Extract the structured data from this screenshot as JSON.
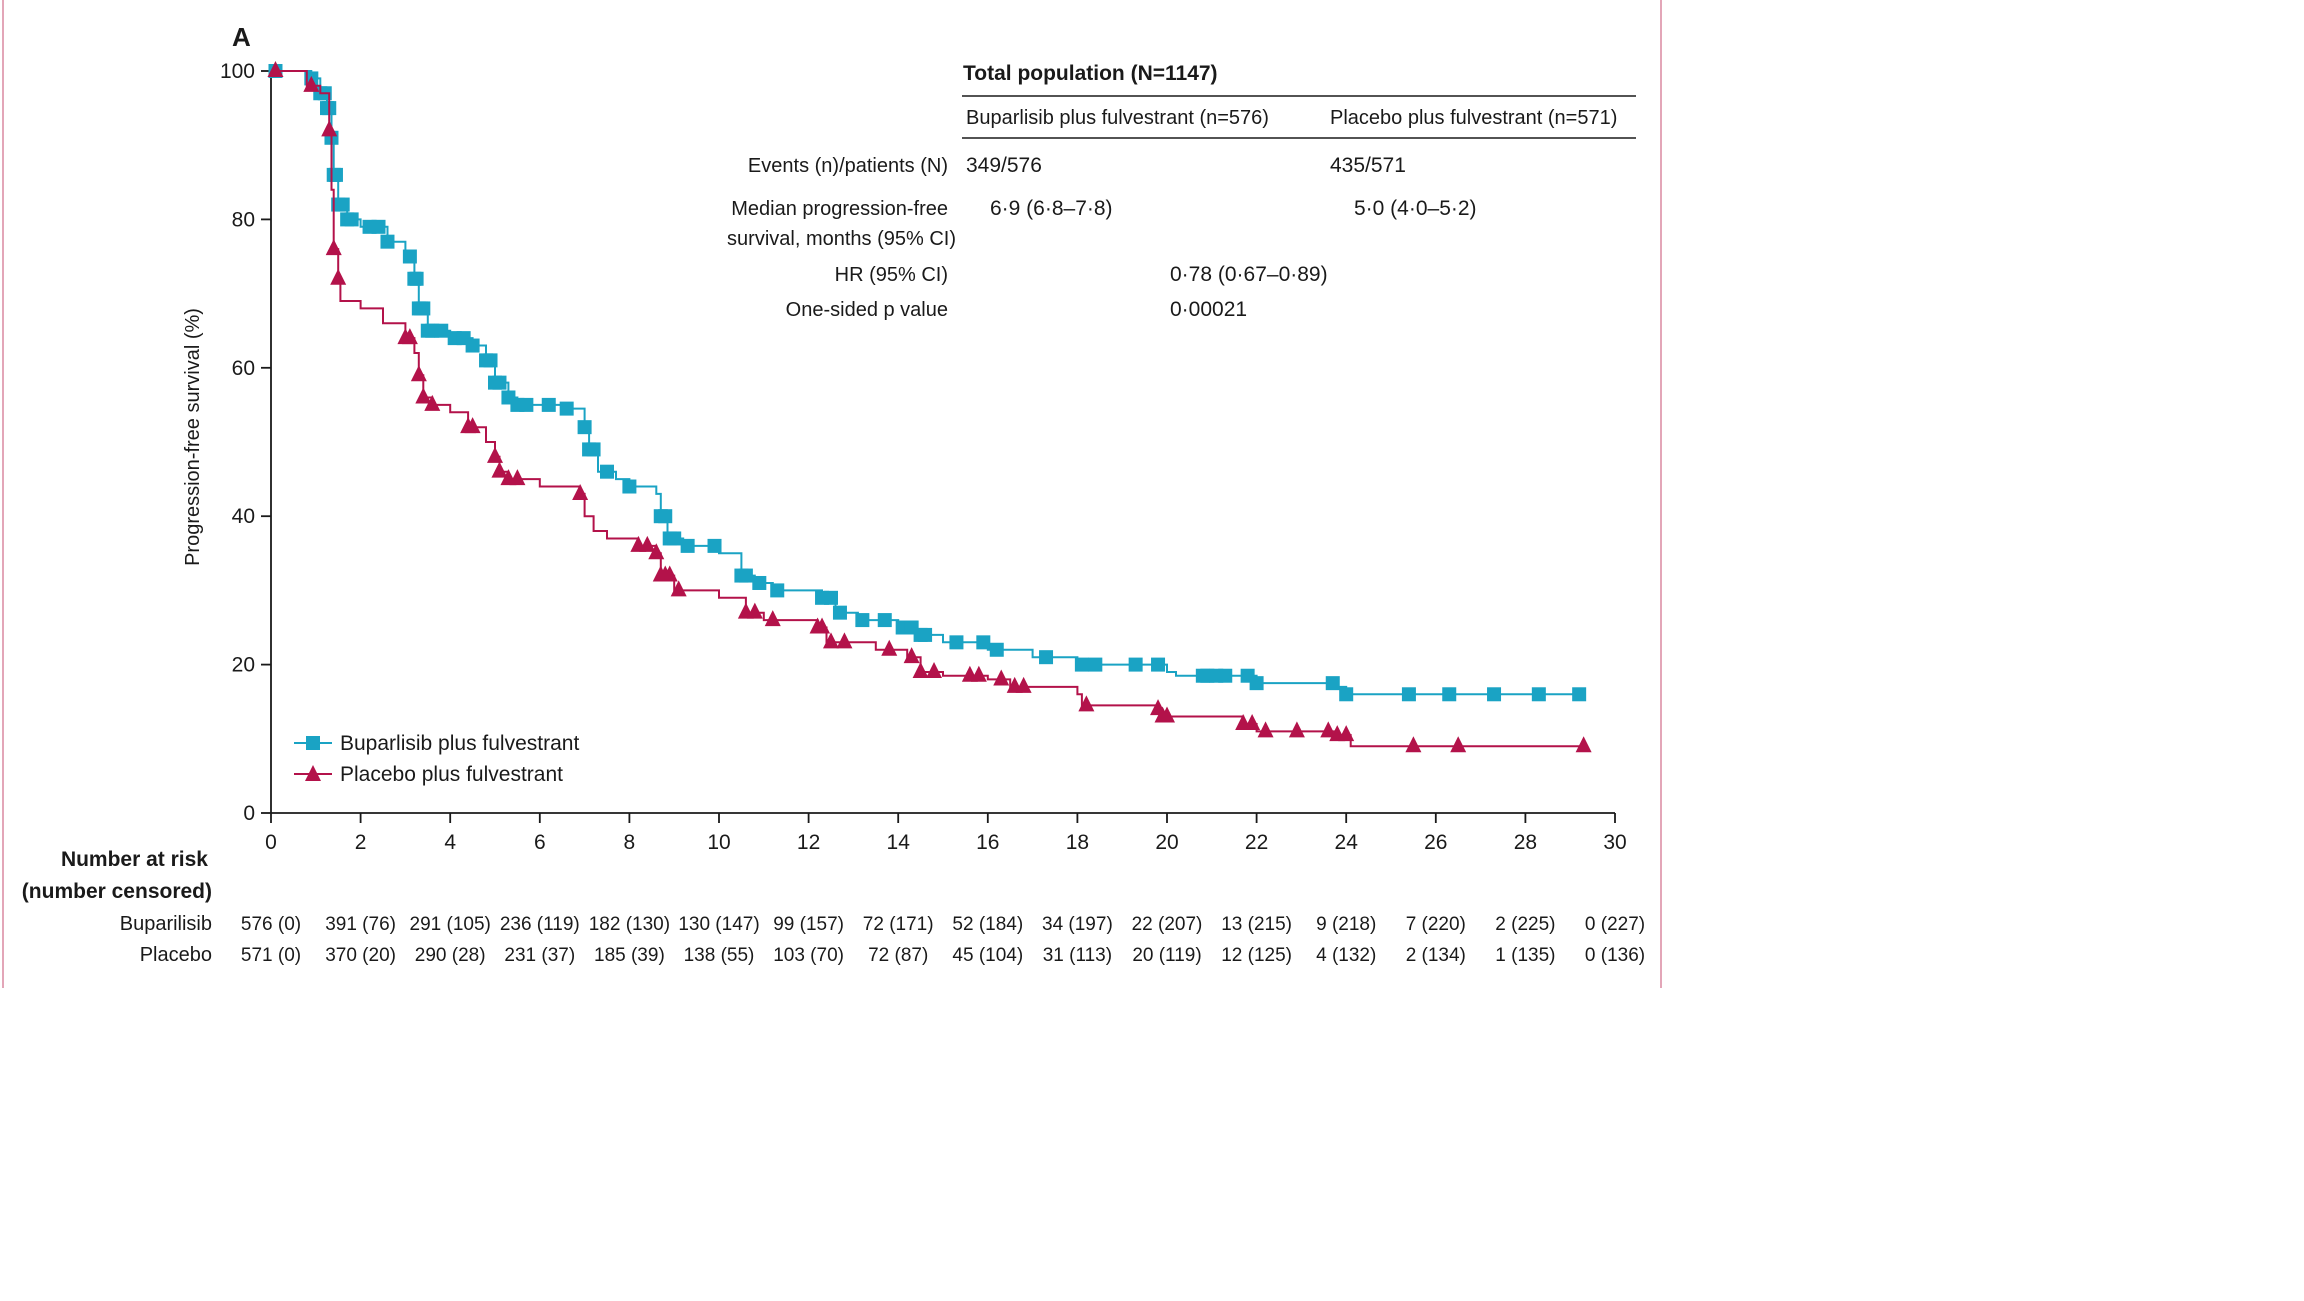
{
  "panel_label": "A",
  "colors": {
    "buparlisib": "#1aa3c4",
    "placebo": "#b3124a",
    "axis": "#1a1a1a",
    "frame": "#e3a6b8"
  },
  "table": {
    "title": "Total population (N=1147)",
    "col1": "Buparlisib plus fulvestrant (n=576)",
    "col2": "Placebo plus fulvestrant (n=571)",
    "rows": [
      {
        "label": "Events (n)/patients (N)",
        "v1": "349/576",
        "v2": "435/571"
      },
      {
        "label1": "Median progression-free",
        "label2": "survival, months (95% CI)",
        "v1": "6·9 (6·8–7·8)",
        "v2": "5·0 (4·0–5·2)"
      },
      {
        "label": "HR (95% CI)",
        "v": "0·78 (0·67–0·89)"
      },
      {
        "label": "One-sided p value",
        "v": "0·00021"
      }
    ]
  },
  "legend": {
    "buparlisib": "Buparlisib plus fulvestrant",
    "placebo": "Placebo plus fulvestrant"
  },
  "risk": {
    "heading1": "Number at risk",
    "heading2": "(number censored)",
    "rows": [
      {
        "label": "Buparilisib",
        "values": [
          "576 (0)",
          "391 (76)",
          "291 (105)",
          "236 (119)",
          "182 (130)",
          "130 (147)",
          "99 (157)",
          "72 (171)",
          "52 (184)",
          "34 (197)",
          "22 (207)",
          "13 (215)",
          "9 (218)",
          "7 (220)",
          "2 (225)",
          "0 (227)"
        ]
      },
      {
        "label": "Placebo",
        "values": [
          "571 (0)",
          "370 (20)",
          "290 (28)",
          "231 (37)",
          "185 (39)",
          "138 (55)",
          "103 (70)",
          "72 (87)",
          "45 (104)",
          "31 (113)",
          "20 (119)",
          "12 (125)",
          "4 (132)",
          "2 (134)",
          "1 (135)",
          "0 (136)"
        ]
      }
    ]
  },
  "chart_data": {
    "type": "line",
    "title": "",
    "xlabel": "",
    "ylabel": "Progression-free survival (%)",
    "xlim": [
      0,
      30
    ],
    "ylim": [
      0,
      100
    ],
    "x_ticks": [
      0,
      2,
      4,
      6,
      8,
      10,
      12,
      14,
      16,
      18,
      20,
      22,
      24,
      26,
      28,
      30
    ],
    "y_ticks": [
      0,
      20,
      40,
      60,
      80,
      100
    ],
    "grid": false,
    "legend_position": "bottom-left",
    "series": [
      {
        "name": "Buparlisib plus fulvestrant",
        "marker": "square",
        "steps": [
          [
            0,
            100
          ],
          [
            0.9,
            99
          ],
          [
            1.1,
            97
          ],
          [
            1.25,
            95
          ],
          [
            1.35,
            91
          ],
          [
            1.4,
            86
          ],
          [
            1.5,
            82
          ],
          [
            1.7,
            80
          ],
          [
            2.0,
            79
          ],
          [
            2.6,
            77
          ],
          [
            3.0,
            75
          ],
          [
            3.2,
            72
          ],
          [
            3.3,
            68
          ],
          [
            3.5,
            65
          ],
          [
            4.0,
            64
          ],
          [
            4.5,
            63
          ],
          [
            4.8,
            61
          ],
          [
            5.0,
            58
          ],
          [
            5.3,
            56
          ],
          [
            5.5,
            55
          ],
          [
            6.6,
            54.5
          ],
          [
            7.0,
            52
          ],
          [
            7.1,
            49
          ],
          [
            7.3,
            46
          ],
          [
            7.7,
            45
          ],
          [
            8.0,
            44
          ],
          [
            8.6,
            43
          ],
          [
            8.7,
            40
          ],
          [
            8.85,
            37
          ],
          [
            9.2,
            36
          ],
          [
            10.0,
            35
          ],
          [
            10.5,
            32
          ],
          [
            10.8,
            31
          ],
          [
            11.2,
            30
          ],
          [
            12.3,
            29
          ],
          [
            12.6,
            27
          ],
          [
            13.1,
            26
          ],
          [
            14.0,
            25
          ],
          [
            14.4,
            24
          ],
          [
            15.0,
            23
          ],
          [
            16.0,
            22
          ],
          [
            17.0,
            21
          ],
          [
            18.0,
            20
          ],
          [
            18.3,
            20
          ],
          [
            20.0,
            19
          ],
          [
            20.2,
            18.5
          ],
          [
            21.8,
            18.5
          ],
          [
            22.0,
            17.5
          ],
          [
            23.8,
            17
          ],
          [
            24.0,
            16
          ],
          [
            29.3,
            16
          ]
        ],
        "censor_x": [
          0.1,
          0.9,
          1.1,
          1.2,
          1.25,
          1.3,
          1.35,
          1.4,
          1.45,
          1.5,
          1.6,
          1.7,
          1.8,
          2.2,
          2.4,
          2.6,
          3.1,
          3.2,
          3.25,
          3.3,
          3.35,
          3.4,
          3.5,
          3.6,
          3.8,
          4.1,
          4.3,
          4.5,
          4.8,
          4.9,
          5.0,
          5.1,
          5.3,
          5.5,
          5.7,
          6.2,
          6.6,
          7.0,
          7.1,
          7.2,
          7.5,
          8.0,
          8.7,
          8.8,
          8.9,
          9.0,
          9.3,
          9.9,
          10.5,
          10.6,
          10.9,
          11.3,
          12.3,
          12.5,
          12.7,
          13.2,
          13.7,
          14.1,
          14.3,
          14.5,
          14.6,
          15.3,
          15.9,
          16.2,
          17.3,
          18.1,
          18.4,
          19.3,
          19.8,
          20.8,
          20.9,
          21.1,
          21.3,
          21.8,
          22.0,
          23.7,
          24.0,
          25.4,
          26.3,
          27.3,
          28.3,
          29.2
        ]
      },
      {
        "name": "Placebo plus fulvestrant",
        "marker": "triangle",
        "steps": [
          [
            0,
            100
          ],
          [
            0.8,
            98
          ],
          [
            1.1,
            97
          ],
          [
            1.3,
            92
          ],
          [
            1.35,
            84
          ],
          [
            1.4,
            76
          ],
          [
            1.5,
            72
          ],
          [
            1.55,
            69
          ],
          [
            2.0,
            68
          ],
          [
            2.5,
            66
          ],
          [
            3.0,
            64
          ],
          [
            3.2,
            62
          ],
          [
            3.3,
            59
          ],
          [
            3.4,
            56
          ],
          [
            3.6,
            55
          ],
          [
            4.0,
            54
          ],
          [
            4.4,
            52
          ],
          [
            4.8,
            50
          ],
          [
            5.0,
            48
          ],
          [
            5.1,
            46
          ],
          [
            5.3,
            45
          ],
          [
            6.0,
            44
          ],
          [
            6.9,
            43
          ],
          [
            7.0,
            40
          ],
          [
            7.2,
            38
          ],
          [
            7.5,
            37
          ],
          [
            8.2,
            36
          ],
          [
            8.6,
            35
          ],
          [
            8.7,
            32
          ],
          [
            9.0,
            30
          ],
          [
            10.0,
            29
          ],
          [
            10.6,
            27
          ],
          [
            11.0,
            26
          ],
          [
            12.2,
            25
          ],
          [
            12.4,
            23
          ],
          [
            13.5,
            22
          ],
          [
            14.2,
            21
          ],
          [
            14.5,
            19
          ],
          [
            15.0,
            18.5
          ],
          [
            16.0,
            18
          ],
          [
            16.5,
            17
          ],
          [
            18.0,
            16
          ],
          [
            18.1,
            14.5
          ],
          [
            19.8,
            14
          ],
          [
            19.9,
            13
          ],
          [
            21.7,
            12
          ],
          [
            22.0,
            11
          ],
          [
            23.8,
            10.5
          ],
          [
            24.1,
            9
          ],
          [
            29.3,
            9
          ]
        ],
        "censor_x": [
          0.1,
          0.9,
          1.3,
          1.4,
          1.5,
          3.0,
          3.1,
          3.3,
          3.4,
          3.6,
          4.4,
          4.5,
          5.0,
          5.1,
          5.3,
          5.5,
          6.9,
          8.2,
          8.4,
          8.6,
          8.7,
          8.8,
          8.9,
          9.1,
          10.6,
          10.8,
          11.2,
          12.2,
          12.3,
          12.5,
          12.8,
          13.8,
          14.3,
          14.5,
          14.8,
          15.6,
          15.8,
          16.3,
          16.6,
          16.8,
          18.2,
          19.8,
          19.9,
          20.0,
          21.7,
          21.9,
          22.2,
          22.9,
          23.6,
          23.8,
          24.0,
          25.5,
          26.5,
          29.3
        ]
      }
    ]
  }
}
